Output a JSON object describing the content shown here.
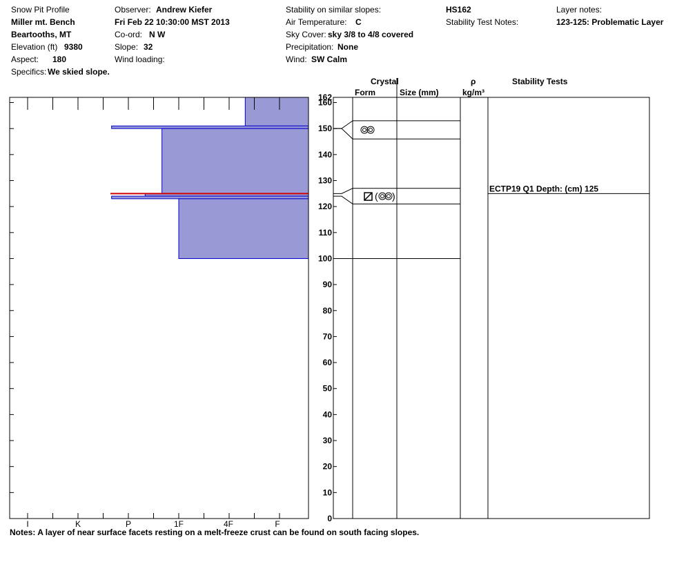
{
  "header": {
    "title": "Snow Pit Profile",
    "location": "Miller mt. Bench",
    "region": "Beartooths, MT",
    "elevation_label": "Elevation (ft)",
    "elevation": "9380",
    "aspect_label": "Aspect:",
    "aspect": "180",
    "specifics_label": "Specifics:",
    "specifics": "We skied slope.",
    "observer_label": "Observer:",
    "observer": "Andrew Kiefer",
    "datetime": "Fri Feb 22 10:30:00 MST 2013",
    "coord_label": "Co-ord:",
    "coord": "N  W",
    "slope_label": "Slope:",
    "slope": "32",
    "wind_loading_label": "Wind loading:",
    "wind_loading": "",
    "stability_similar_label": "Stability on similar slopes:",
    "stability_similar": "",
    "air_temp_label": "Air Temperature:",
    "air_temp": "C",
    "sky_label": "Sky Cover:",
    "sky": "sky 3/8 to 4/8 covered",
    "precip_label": "Precipitation:",
    "precip": "None",
    "wind_label": "Wind:",
    "wind": "SW Calm",
    "hs": "HS162",
    "stability_notes_label": "Stability Test Notes:",
    "stability_notes": "",
    "layer_notes_label": "Layer notes:",
    "layer_notes": "123-125: Problematic Layer"
  },
  "columns": {
    "crystal": "Crystal",
    "form": "Form",
    "size": "Size (mm)",
    "rho": "ρ",
    "density_unit": "kg/m³",
    "stability_tests": "Stability Tests"
  },
  "notes": "Notes:  A layer of near surface facets resting on a melt-freeze crust can be found on south facing slopes.",
  "colors": {
    "layer_fill": "#9999d6",
    "layer_stroke": "#0000cc",
    "problem_layer": "#cc0000"
  },
  "chart_data": {
    "type": "bar",
    "title": "Snow Pit Profile",
    "hardness_scale": [
      "I",
      "K",
      "P",
      "1F",
      "4F",
      "F"
    ],
    "height_ticks": [
      0,
      10,
      20,
      30,
      40,
      50,
      60,
      70,
      80,
      90,
      100,
      110,
      120,
      130,
      140,
      150,
      160
    ],
    "height_max": 162,
    "height_max_label": "162",
    "ylim": [
      0,
      162
    ],
    "layers": [
      {
        "bottom": 151,
        "top": 162,
        "hardness": "4F-"
      },
      {
        "bottom": 150,
        "top": 151,
        "hardness": "P+"
      },
      {
        "bottom": 125,
        "top": 150,
        "hardness": "1F+"
      },
      {
        "bottom": 124,
        "top": 125,
        "hardness": "P-"
      },
      {
        "bottom": 123,
        "top": 124,
        "hardness": "P+"
      },
      {
        "bottom": 100,
        "top": 123,
        "hardness": "1F"
      }
    ],
    "problem_layer_height": 125,
    "grain_layers": [
      {
        "bottom": 146,
        "top": 153,
        "form": "facets-rounding"
      },
      {
        "bottom": 121,
        "top": 127,
        "form": "faceted-crust"
      }
    ],
    "layer_boundaries": [
      100
    ],
    "stability_tests": [
      {
        "height": 125,
        "label": "ECTP19 Q1 Depth: (cm) 125"
      }
    ]
  }
}
